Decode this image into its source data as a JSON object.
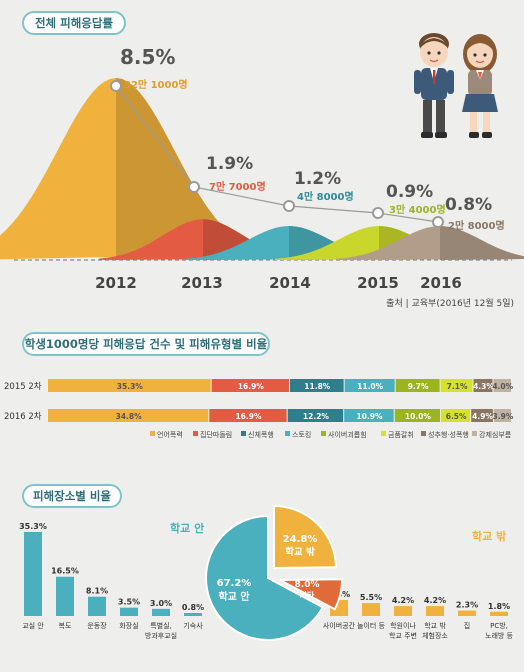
{
  "section1": {
    "title": "전체 피해응답률",
    "source": "출처 | 교육부(2016년 12월 5일)",
    "chart_data": {
      "type": "area",
      "title": "전체 피해응답률",
      "categories": [
        "2012",
        "2013",
        "2014",
        "2015",
        "2016"
      ],
      "rates": [
        "8.5%",
        "1.9%",
        "1.2%",
        "0.9%",
        "0.8%"
      ],
      "values": [
        8.5,
        1.9,
        1.2,
        0.9,
        0.8
      ],
      "counts": [
        "32만 1000명",
        "7만 7000명",
        "4만 8000명",
        "3만 4000명",
        "2만 8000명"
      ],
      "colors": [
        "#f0b23c",
        "#e35b42",
        "#4ab0bd",
        "#c9d62c",
        "#b29d8a"
      ]
    }
  },
  "section2": {
    "title": "학생1000명당 피해응답 건수 및 피해유형별 비율",
    "chart_data": {
      "type": "bar",
      "stacked": true,
      "categories": [
        "2015 2차",
        "2016 2차"
      ],
      "series": [
        {
          "name": "언어폭력",
          "color": "#f0b23c",
          "values": [
            35.3,
            34.8
          ],
          "labels": [
            "35.3%",
            "34.8%"
          ]
        },
        {
          "name": "집단따돌림",
          "color": "#e35b42",
          "values": [
            16.9,
            16.9
          ],
          "labels": [
            "16.9%",
            "16.9%"
          ]
        },
        {
          "name": "신체폭행",
          "color": "#2e7f8c",
          "values": [
            11.8,
            12.2
          ],
          "labels": [
            "11.8%",
            "12.2%"
          ]
        },
        {
          "name": "스토킹",
          "color": "#4ab0bd",
          "values": [
            11.0,
            10.9
          ],
          "labels": [
            "11.0%",
            "10.9%"
          ]
        },
        {
          "name": "사이버괴롭힘",
          "color": "#9cb41f",
          "values": [
            9.7,
            10.0
          ],
          "labels": [
            "9.7%",
            "10.0%"
          ]
        },
        {
          "name": "금품갈취",
          "color": "#d4e22e",
          "values": [
            7.1,
            6.5
          ],
          "labels": [
            "7.1%",
            "6.5%"
          ]
        },
        {
          "name": "성추행·성폭행",
          "color": "#8a7563",
          "values": [
            4.3,
            4.9
          ],
          "labels": [
            "4.3%",
            "4.9%"
          ]
        },
        {
          "name": "강제심부름",
          "color": "#bfb2a2",
          "values": [
            4.0,
            3.9
          ],
          "labels": [
            "4.0%",
            "3.9%"
          ]
        }
      ]
    }
  },
  "section3": {
    "title": "피해장소별 비율",
    "inside_label": "학교 안",
    "outside_label": "학교 밖",
    "chart_data": [
      {
        "type": "bar",
        "group": "학교 안",
        "color": "#4ab0bd",
        "categories": [
          "교실 안",
          "복도",
          "운동장",
          "화장실",
          "특별실, 방과후교실",
          "기숙사"
        ],
        "category_lines": [
          [
            "교실 안"
          ],
          [
            "복도"
          ],
          [
            "운동장"
          ],
          [
            "화장실"
          ],
          [
            "특별실,",
            "방과후교실"
          ],
          [
            "기숙사"
          ]
        ],
        "values": [
          35.3,
          16.5,
          8.1,
          3.5,
          3.0,
          0.8
        ],
        "labels": [
          "35.3%",
          "16.5%",
          "8.1%",
          "3.5%",
          "3.0%",
          "0.8%"
        ]
      },
      {
        "type": "pie",
        "slices": [
          {
            "name": "학교 안",
            "value": 67.2,
            "label": "67.2%",
            "color": "#4ab0bd"
          },
          {
            "name": "학교 밖",
            "value": 24.8,
            "label": "24.8%",
            "color": "#f0b23c"
          },
          {
            "name": "기타",
            "value": 8.0,
            "label": "8.0%",
            "color": "#e06a3a"
          }
        ]
      },
      {
        "type": "bar",
        "group": "학교 밖",
        "color": "#f0b23c",
        "categories": [
          "사이버공간",
          "놀이터 등",
          "학원이나 학교 주변",
          "학교 밖 체험장소",
          "집",
          "PC방, 노래방 등"
        ],
        "category_lines": [
          [
            "사이버공간"
          ],
          [
            "놀이터 등"
          ],
          [
            "학원이나",
            "학교 주변"
          ],
          [
            "학교 밖",
            "체험장소"
          ],
          [
            "집"
          ],
          [
            "PC방,",
            "노래방 등"
          ]
        ],
        "values": [
          6.8,
          5.5,
          4.2,
          4.2,
          2.3,
          1.8
        ],
        "labels": [
          "6.8%",
          "5.5%",
          "4.2%",
          "4.2%",
          "2.3%",
          "1.8%"
        ]
      }
    ]
  }
}
